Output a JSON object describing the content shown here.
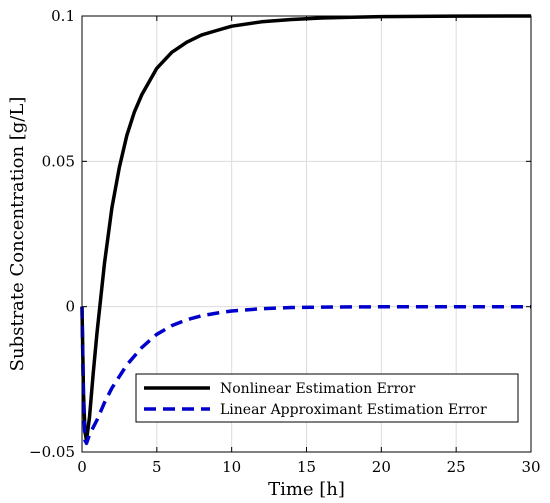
{
  "chart_data": {
    "type": "line",
    "xlabel": "Time [h]",
    "ylabel": "Substrate Concentration [g/L]",
    "xlim": [
      0,
      30
    ],
    "ylim": [
      -0.05,
      0.1
    ],
    "xticks": [
      0,
      5,
      10,
      15,
      20,
      25,
      30
    ],
    "xtick_labels": [
      "0",
      "5",
      "10",
      "15",
      "20",
      "25",
      "30"
    ],
    "yticks": [
      -0.05,
      0,
      0.05,
      0.1
    ],
    "ytick_labels": [
      "−0.05",
      "0",
      "0.05",
      "0.1"
    ],
    "grid": true,
    "legend_position": "bottom-right",
    "series": [
      {
        "name": "Nonlinear Estimation Error",
        "color": "#000000",
        "style": "solid",
        "x": [
          0,
          0.1,
          0.2,
          0.3,
          0.5,
          0.75,
          1,
          1.5,
          2,
          2.5,
          3,
          3.5,
          4,
          5,
          6,
          7,
          8,
          9,
          10,
          12,
          14,
          16,
          18,
          20,
          25,
          30
        ],
        "y": [
          0,
          -0.03,
          -0.043,
          -0.046,
          -0.038,
          -0.023,
          -0.009,
          0.015,
          0.034,
          0.048,
          0.059,
          0.067,
          0.073,
          0.082,
          0.0875,
          0.091,
          0.0935,
          0.095,
          0.0965,
          0.098,
          0.0988,
          0.0993,
          0.0996,
          0.0998,
          0.09995,
          0.1
        ]
      },
      {
        "name": "Linear Approximant Estimation Error",
        "color": "#0000cc",
        "style": "dashed",
        "x": [
          0,
          0.1,
          0.2,
          0.3,
          0.5,
          1,
          1.5,
          2,
          3,
          4,
          5,
          6,
          7,
          8,
          9,
          10,
          12,
          14,
          16,
          18,
          20,
          25,
          30
        ],
        "y": [
          0,
          -0.033,
          -0.046,
          -0.047,
          -0.044,
          -0.039,
          -0.033,
          -0.028,
          -0.02,
          -0.014,
          -0.0095,
          -0.0065,
          -0.0045,
          -0.0031,
          -0.0022,
          -0.0015,
          -0.0007,
          -0.0003,
          -0.00015,
          -7e-05,
          -3e-05,
          0,
          0
        ]
      }
    ]
  }
}
